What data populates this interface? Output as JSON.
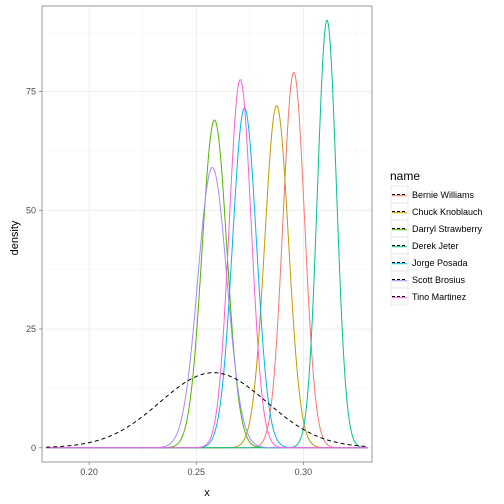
{
  "chart_data": {
    "type": "line",
    "xlabel": "x",
    "ylabel": "density",
    "xlim": [
      0.178,
      0.332
    ],
    "ylim": [
      -3,
      93
    ],
    "x_ticks": [
      0.2,
      0.25,
      0.3
    ],
    "x_tick_labels": [
      "0.20",
      "0.25",
      "0.30"
    ],
    "y_ticks": [
      0,
      25,
      50,
      75
    ],
    "y_tick_labels": [
      "0",
      "25",
      "50",
      "75"
    ],
    "grid": true,
    "legend_position": "right",
    "legend_title": "name",
    "reference_curve": {
      "style": "dashed",
      "color": "#000000",
      "mean": 0.258,
      "sd": 0.025,
      "peak_density": 15.8,
      "x_range": [
        0.18,
        0.33
      ]
    },
    "series": [
      {
        "name": "Bernie Williams",
        "color": "#F8766D",
        "mean": 0.2955,
        "peak_density": 79,
        "x_range": [
          0.18,
          0.33
        ]
      },
      {
        "name": "Chuck Knoblauch",
        "color": "#C49A00",
        "mean": 0.2875,
        "peak_density": 72,
        "x_range": [
          0.18,
          0.33
        ]
      },
      {
        "name": "Darryl Strawberry",
        "color": "#53B400",
        "mean": 0.2585,
        "peak_density": 69,
        "x_range": [
          0.18,
          0.33
        ]
      },
      {
        "name": "Derek Jeter",
        "color": "#00C094",
        "mean": 0.311,
        "peak_density": 90,
        "x_range": [
          0.18,
          0.33
        ]
      },
      {
        "name": "Jorge Posada",
        "color": "#00B6EB",
        "mean": 0.2725,
        "peak_density": 71.5,
        "x_range": [
          0.18,
          0.33
        ]
      },
      {
        "name": "Scott Brosius",
        "color": "#A58AFF",
        "mean": 0.2575,
        "peak_density": 59,
        "x_range": [
          0.18,
          0.33
        ]
      },
      {
        "name": "Tino Martinez",
        "color": "#FB61D7",
        "mean": 0.2705,
        "peak_density": 77.5,
        "x_range": [
          0.18,
          0.33
        ]
      }
    ]
  }
}
